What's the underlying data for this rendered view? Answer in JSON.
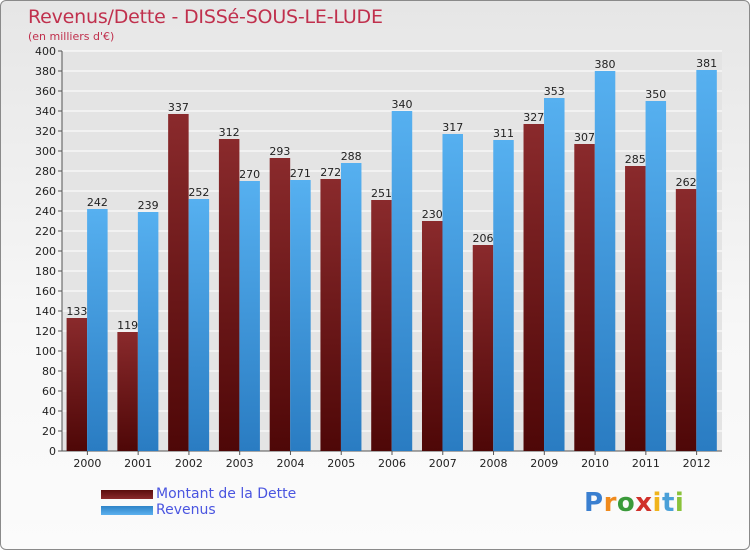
{
  "header": {
    "title": "Revenus/Dette - DISSé-SOUS-LE-LUDE",
    "subtitle": "(en milliers d'€)"
  },
  "legend": {
    "dette_label": "Montant de la Dette",
    "revenus_label": "Revenus"
  },
  "brand": {
    "letters": [
      "P",
      "r",
      "o",
      "x",
      "i",
      "t",
      "i"
    ],
    "colors": [
      "#3a7fd0",
      "#f08a1c",
      "#3a9a3a",
      "#d0302a",
      "#f0b41c",
      "#4aa0d8",
      "#8ac23a"
    ]
  },
  "colors": {
    "dette": "#7a2224",
    "revenus": "#4aa3e6",
    "title": "#c0304d",
    "grid": "#ffffff"
  },
  "chart_data": {
    "type": "bar",
    "title": "Revenus/Dette - DISSé-SOUS-LE-LUDE",
    "subtitle": "(en milliers d'€)",
    "xlabel": "",
    "ylabel": "",
    "ylim": [
      0,
      400
    ],
    "ytick_step": 20,
    "grid": true,
    "legend_position": "bottom-left",
    "categories": [
      "2000",
      "2001",
      "2002",
      "2003",
      "2004",
      "2005",
      "2006",
      "2007",
      "2008",
      "2009",
      "2010",
      "2011",
      "2012"
    ],
    "series": [
      {
        "name": "Montant de la Dette",
        "values": [
          133,
          119,
          337,
          312,
          293,
          272,
          251,
          230,
          206,
          327,
          307,
          285,
          262
        ]
      },
      {
        "name": "Revenus",
        "values": [
          242,
          239,
          252,
          270,
          271,
          288,
          340,
          317,
          311,
          353,
          380,
          350,
          381
        ]
      }
    ]
  }
}
